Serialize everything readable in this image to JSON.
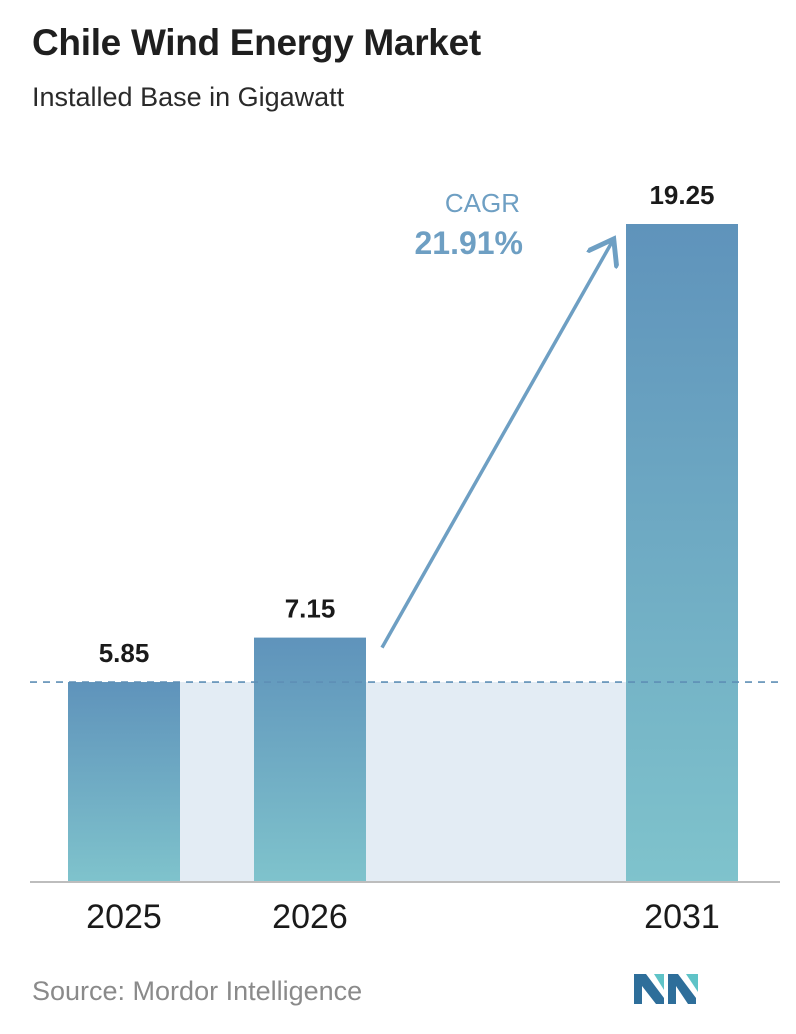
{
  "header": {
    "title": "Chile Wind Energy Market",
    "subtitle": "Installed Base in Gigawatt"
  },
  "cagr": {
    "label": "CAGR",
    "value": "21.91%"
  },
  "footer": {
    "source": "Source:  Mordor Intelligence"
  },
  "colors": {
    "bar_top": "#5f93bb",
    "bar_bottom": "#7fc3cc",
    "band": "#e3ecf4",
    "dashed_line": "#5e8fb5",
    "arrow": "#6e9fc3",
    "cagr_text": "#6e9fc3",
    "logo_dark": "#2e6e9a",
    "logo_light": "#5fc3c7"
  },
  "chart_data": {
    "type": "bar",
    "title": "Chile Wind Energy Market",
    "subtitle": "Installed Base in Gigawatt",
    "categories": [
      "2025",
      "2026",
      "2031"
    ],
    "values": [
      5.85,
      7.15,
      19.25
    ],
    "value_labels": [
      "5.85",
      "7.15",
      "19.25"
    ],
    "xlabel": "",
    "ylabel": "",
    "ylim": [
      0,
      19.25
    ],
    "grid": false,
    "legend": "none",
    "reference_line": {
      "value": 5.85,
      "style": "dashed"
    },
    "annotation": {
      "label": "CAGR",
      "value": "21.91%",
      "from": "2026",
      "to": "2031"
    }
  }
}
